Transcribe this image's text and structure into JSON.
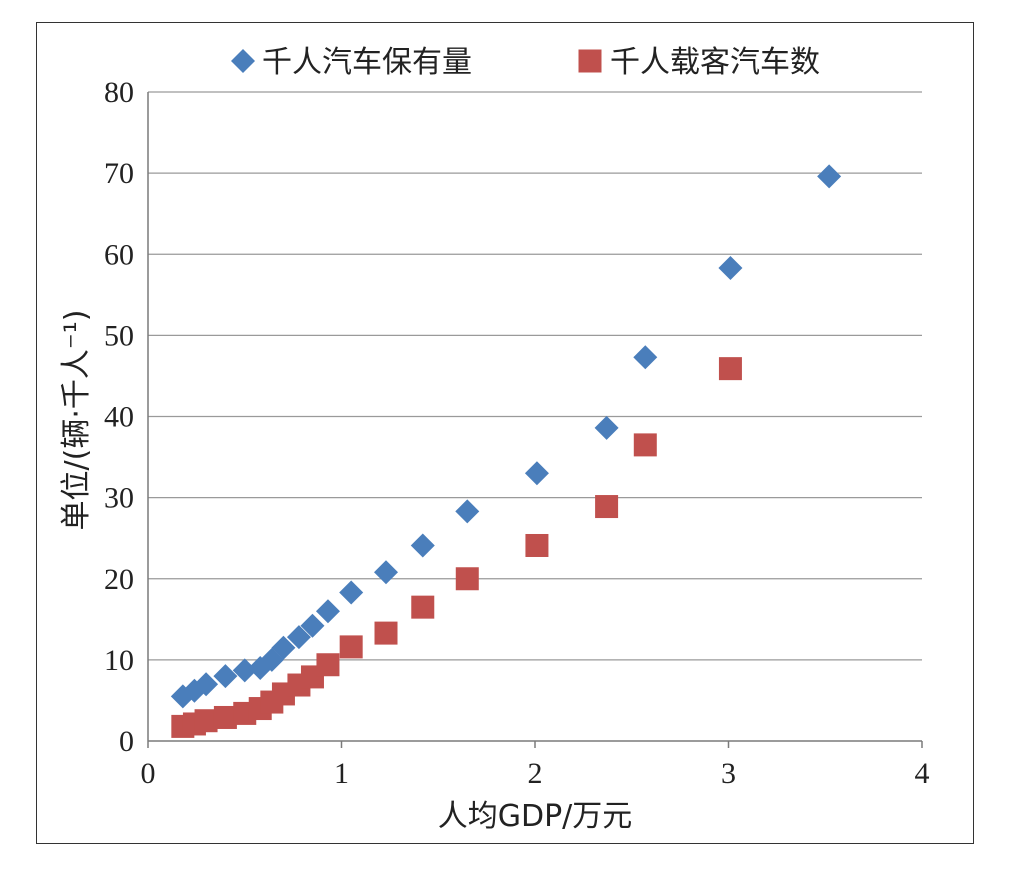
{
  "chart_data": {
    "type": "scatter",
    "xlabel": "人均GDP/万元",
    "ylabel": "单位/(辆·千人⁻¹)",
    "xlim": [
      0,
      4
    ],
    "ylim": [
      0,
      80
    ],
    "x_ticks": [
      "0",
      "1",
      "2",
      "3",
      "4"
    ],
    "y_ticks": [
      "0",
      "10",
      "20",
      "30",
      "40",
      "50",
      "60",
      "70",
      "80"
    ],
    "grid": "horizontal",
    "legend_position": "top",
    "series": [
      {
        "name": "千人汽车保有量",
        "marker": "diamond",
        "color": "#4a7ebb",
        "points": [
          [
            0.18,
            5.5
          ],
          [
            0.24,
            6.2
          ],
          [
            0.3,
            7.0
          ],
          [
            0.4,
            8.0
          ],
          [
            0.5,
            8.7
          ],
          [
            0.58,
            9.0
          ],
          [
            0.64,
            10.0
          ],
          [
            0.7,
            11.5
          ],
          [
            0.78,
            12.8
          ],
          [
            0.85,
            14.2
          ],
          [
            0.93,
            16.0
          ],
          [
            1.05,
            18.3
          ],
          [
            1.23,
            20.8
          ],
          [
            1.42,
            24.1
          ],
          [
            1.65,
            28.3
          ],
          [
            2.01,
            33.0
          ],
          [
            2.37,
            38.6
          ],
          [
            2.57,
            47.3
          ],
          [
            3.01,
            58.3
          ],
          [
            3.52,
            69.6
          ]
        ]
      },
      {
        "name": "千人载客汽车数",
        "marker": "square",
        "color": "#c0504d",
        "points": [
          [
            0.18,
            1.8
          ],
          [
            0.24,
            2.1
          ],
          [
            0.3,
            2.5
          ],
          [
            0.4,
            2.9
          ],
          [
            0.5,
            3.4
          ],
          [
            0.58,
            4.0
          ],
          [
            0.64,
            4.8
          ],
          [
            0.7,
            5.8
          ],
          [
            0.78,
            6.9
          ],
          [
            0.85,
            7.9
          ],
          [
            0.93,
            9.4
          ],
          [
            1.05,
            11.6
          ],
          [
            1.23,
            13.3
          ],
          [
            1.42,
            16.5
          ],
          [
            1.65,
            20.0
          ],
          [
            2.01,
            24.1
          ],
          [
            2.37,
            28.9
          ],
          [
            2.57,
            36.5
          ],
          [
            3.01,
            45.9
          ]
        ]
      }
    ]
  }
}
